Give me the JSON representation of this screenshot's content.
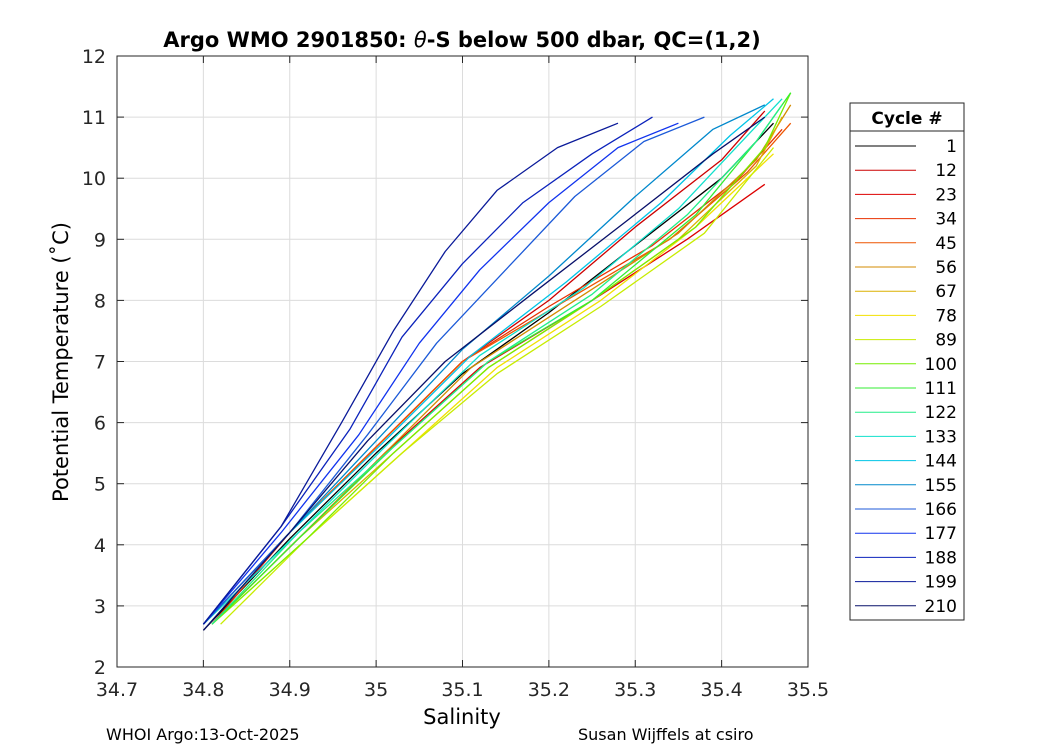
{
  "chart_data": {
    "type": "line",
    "title": "Argo WMO 2901850: θ-S below 500 dbar,  QC=(1,2)",
    "title_prefix": "Argo WMO 2901850: ",
    "title_symbol": "θ",
    "title_suffix": "-S below 500 dbar,  QC=(1,2)",
    "xlabel": "Salinity",
    "ylabel": "Potential Temperature (˚C)",
    "xlim": [
      34.7,
      35.5
    ],
    "ylim": [
      2,
      12
    ],
    "xticks": [
      "34.7",
      "34.8",
      "34.9",
      "35",
      "35.1",
      "35.2",
      "35.3",
      "35.4",
      "35.5"
    ],
    "yticks": [
      "2",
      "3",
      "4",
      "5",
      "6",
      "7",
      "8",
      "9",
      "10",
      "11",
      "12"
    ],
    "grid": true,
    "legend_title": "Cycle #",
    "legend_position": "right, outside",
    "series": [
      {
        "name": "1",
        "color": "#000000",
        "x": [
          34.8,
          34.9,
          35.0,
          35.1,
          35.2,
          35.3,
          35.4,
          35.46
        ],
        "y": [
          2.6,
          4.1,
          5.5,
          6.8,
          7.8,
          8.9,
          10.0,
          10.9
        ]
      },
      {
        "name": "12",
        "color": "#cc0000",
        "x": [
          34.8,
          34.9,
          35.0,
          35.1,
          35.2,
          35.3,
          35.4,
          35.45
        ],
        "y": [
          2.7,
          4.2,
          5.6,
          7.0,
          8.0,
          9.2,
          10.3,
          11.1
        ]
      },
      {
        "name": "23",
        "color": "#dd0000",
        "x": [
          34.81,
          34.91,
          35.01,
          35.12,
          35.25,
          35.36,
          35.45
        ],
        "y": [
          2.7,
          4.1,
          5.5,
          6.9,
          8.0,
          9.0,
          9.9
        ]
      },
      {
        "name": "34",
        "color": "#e83000",
        "x": [
          34.81,
          34.9,
          35.0,
          35.1,
          35.2,
          35.32,
          35.42,
          35.47
        ],
        "y": [
          2.7,
          4.2,
          5.6,
          7.0,
          7.9,
          8.9,
          10.0,
          10.8
        ]
      },
      {
        "name": "45",
        "color": "#ee5500",
        "x": [
          34.8,
          34.9,
          35.0,
          35.1,
          35.22,
          35.34,
          35.43,
          35.48
        ],
        "y": [
          2.7,
          4.2,
          5.6,
          7.0,
          8.0,
          9.0,
          10.1,
          10.9
        ]
      },
      {
        "name": "56",
        "color": "#d38b00",
        "x": [
          34.81,
          34.91,
          35.01,
          35.11,
          35.23,
          35.35,
          35.44,
          35.48
        ],
        "y": [
          2.7,
          4.1,
          5.5,
          6.9,
          8.0,
          9.1,
          10.3,
          11.2
        ]
      },
      {
        "name": "67",
        "color": "#dcb000",
        "x": [
          34.81,
          34.91,
          35.02,
          35.13,
          35.24,
          35.35,
          35.44,
          35.47
        ],
        "y": [
          2.7,
          4.1,
          5.5,
          6.9,
          7.9,
          9.0,
          10.2,
          11.0
        ]
      },
      {
        "name": "78",
        "color": "#f2e000",
        "x": [
          34.81,
          34.92,
          35.03,
          35.14,
          35.26,
          35.37,
          35.46
        ],
        "y": [
          2.7,
          4.1,
          5.5,
          6.9,
          8.0,
          9.2,
          10.4
        ]
      },
      {
        "name": "89",
        "color": "#c8ec00",
        "x": [
          34.82,
          34.92,
          35.03,
          35.14,
          35.26,
          35.38,
          35.46
        ],
        "y": [
          2.7,
          4.1,
          5.5,
          6.8,
          7.9,
          9.1,
          10.5
        ]
      },
      {
        "name": "100",
        "color": "#77ee00",
        "x": [
          34.81,
          34.92,
          35.02,
          35.13,
          35.25,
          35.37,
          35.45,
          35.48
        ],
        "y": [
          2.7,
          4.1,
          5.5,
          6.9,
          8.0,
          9.2,
          10.5,
          11.4
        ]
      },
      {
        "name": "111",
        "color": "#33ee33",
        "x": [
          34.81,
          34.91,
          35.02,
          35.13,
          35.25,
          35.37,
          35.44,
          35.48
        ],
        "y": [
          2.7,
          4.1,
          5.6,
          7.0,
          8.0,
          9.4,
          10.6,
          11.4
        ]
      },
      {
        "name": "122",
        "color": "#22ee88",
        "x": [
          34.81,
          34.91,
          35.02,
          35.13,
          35.25,
          35.36,
          35.44,
          35.47
        ],
        "y": [
          2.7,
          4.2,
          5.6,
          7.0,
          8.1,
          9.4,
          10.6,
          11.2
        ]
      },
      {
        "name": "133",
        "color": "#11e0cc",
        "x": [
          34.8,
          34.91,
          35.01,
          35.12,
          35.24,
          35.35,
          35.43,
          35.47
        ],
        "y": [
          2.7,
          4.2,
          5.6,
          7.1,
          8.2,
          9.5,
          10.7,
          11.3
        ]
      },
      {
        "name": "144",
        "color": "#00c4e6",
        "x": [
          34.8,
          34.9,
          35.01,
          35.11,
          35.22,
          35.33,
          35.41,
          35.46
        ],
        "y": [
          2.7,
          4.2,
          5.7,
          7.1,
          8.3,
          9.6,
          10.7,
          11.3
        ]
      },
      {
        "name": "155",
        "color": "#0088cc",
        "x": [
          34.8,
          34.9,
          35.0,
          35.1,
          35.2,
          35.3,
          35.39,
          35.45
        ],
        "y": [
          2.7,
          4.2,
          5.7,
          7.2,
          8.4,
          9.7,
          10.8,
          11.2
        ]
      },
      {
        "name": "166",
        "color": "#1c5ad8",
        "x": [
          34.8,
          34.9,
          34.99,
          35.07,
          35.15,
          35.23,
          35.31,
          35.38
        ],
        "y": [
          2.7,
          4.2,
          5.8,
          7.3,
          8.5,
          9.7,
          10.6,
          11.0
        ]
      },
      {
        "name": "177",
        "color": "#1133ee",
        "x": [
          34.8,
          34.89,
          34.98,
          35.05,
          35.12,
          35.2,
          35.28,
          35.35
        ],
        "y": [
          2.7,
          4.2,
          5.8,
          7.3,
          8.5,
          9.6,
          10.5,
          10.9
        ]
      },
      {
        "name": "188",
        "color": "#0b22bb",
        "x": [
          34.8,
          34.89,
          34.97,
          35.03,
          35.1,
          35.17,
          35.25,
          35.32
        ],
        "y": [
          2.7,
          4.3,
          5.9,
          7.4,
          8.6,
          9.6,
          10.4,
          11.0
        ]
      },
      {
        "name": "199",
        "color": "#0a1a99",
        "x": [
          34.8,
          34.89,
          34.96,
          35.02,
          35.08,
          35.14,
          35.21,
          35.28
        ],
        "y": [
          2.7,
          4.3,
          6.0,
          7.5,
          8.8,
          9.8,
          10.5,
          10.9
        ]
      },
      {
        "name": "210",
        "color": "#08106a",
        "x": [
          34.8,
          34.9,
          34.99,
          35.08,
          35.18,
          35.29,
          35.39,
          35.45
        ],
        "y": [
          2.6,
          4.2,
          5.7,
          7.0,
          8.1,
          9.3,
          10.4,
          11.0
        ]
      }
    ]
  },
  "footer": {
    "left": "WHOI Argo:13-Oct-2025",
    "right": "Susan Wijffels at csiro"
  }
}
